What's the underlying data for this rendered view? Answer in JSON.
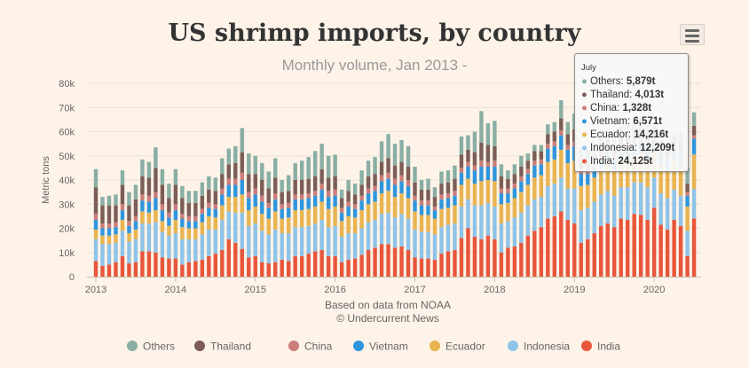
{
  "chart_data": {
    "type": "bar",
    "stacked": true,
    "title": "US shrimp imports, by country",
    "subtitle": "Monthly volume, Jan 2013 -",
    "ylabel": "Metric tons",
    "xlabel": "",
    "source_line1": "Based on data from NOAA",
    "source_line2": "© Undercurrent News",
    "ylim": [
      0,
      80000
    ],
    "y_ticks": [
      0,
      10000,
      20000,
      30000,
      40000,
      50000,
      60000,
      70000,
      80000
    ],
    "y_tick_labels": [
      "0",
      "10k",
      "20k",
      "30k",
      "40k",
      "50k",
      "60k",
      "70k",
      "80k"
    ],
    "x_ticks": [
      {
        "label": "2013",
        "month_index": 0
      },
      {
        "label": "2014",
        "month_index": 12
      },
      {
        "label": "2015",
        "month_index": 24
      },
      {
        "label": "2016",
        "month_index": 36
      },
      {
        "label": "2017",
        "month_index": 48
      },
      {
        "label": "2018",
        "month_index": 60
      },
      {
        "label": "2019",
        "month_index": 72
      },
      {
        "label": "2020",
        "month_index": 84
      }
    ],
    "month_count": 91,
    "stack_order": [
      "India",
      "Indonesia",
      "Ecuador",
      "Vietnam",
      "China",
      "Thailand",
      "Others"
    ],
    "totals": [
      44500,
      33000,
      33500,
      34000,
      44000,
      35000,
      38000,
      48500,
      47500,
      53500,
      44500,
      38500,
      44500,
      37500,
      35500,
      35500,
      39000,
      41500,
      41000,
      49000,
      53000,
      54000,
      61500,
      51000,
      50000,
      47000,
      43500,
      49000,
      40000,
      42000,
      47000,
      48000,
      49500,
      52000,
      55000,
      50000,
      50500,
      36000,
      40000,
      38500,
      44000,
      48000,
      49500,
      56000,
      59000,
      55000,
      56500,
      54000,
      45500,
      40000,
      40500,
      37000,
      43500,
      44000,
      46000,
      58000,
      58500,
      60000,
      68500,
      63500,
      64500,
      46500,
      44000,
      46500,
      50000,
      51000,
      54500,
      54500,
      63000,
      64000,
      73000,
      64000,
      67500,
      53500,
      52500,
      55000,
      58500,
      61000,
      57000,
      62000,
      63000,
      64500,
      66000,
      64000,
      62500,
      56000,
      54000,
      59000,
      60000,
      45000,
      68000
    ],
    "india": [
      6500,
      4500,
      5000,
      6000,
      8500,
      5500,
      6000,
      10500,
      10500,
      10000,
      8000,
      7500,
      7500,
      5000,
      6000,
      6500,
      7000,
      8500,
      9500,
      11000,
      15500,
      14000,
      11500,
      8000,
      8500,
      6000,
      5500,
      6000,
      7000,
      6500,
      8500,
      8500,
      9500,
      10500,
      11000,
      8500,
      8500,
      6000,
      7000,
      7500,
      9000,
      11000,
      12000,
      13500,
      13500,
      12000,
      12500,
      11000,
      8000,
      7500,
      7500,
      7000,
      9500,
      10500,
      11000,
      16000,
      20000,
      16500,
      15500,
      17000,
      15500,
      10000,
      12000,
      12500,
      14000,
      17000,
      19000,
      20500,
      24000,
      25000,
      27000,
      23500,
      22000,
      14000,
      15500,
      18000,
      21000,
      22000,
      20500,
      24000,
      23500,
      26000,
      25500,
      23500,
      28500,
      21500,
      19500,
      23500,
      21000,
      8500,
      24125
    ],
    "indonesia": [
      9000,
      9000,
      8500,
      8000,
      10500,
      9000,
      9500,
      11500,
      11500,
      12500,
      10500,
      9500,
      10500,
      10500,
      9500,
      9000,
      10500,
      11000,
      10000,
      12500,
      11500,
      12500,
      15000,
      13000,
      13500,
      13000,
      12000,
      13500,
      11000,
      11500,
      12000,
      12000,
      11500,
      11500,
      12500,
      12000,
      12500,
      10500,
      11000,
      10500,
      11000,
      11500,
      11500,
      12500,
      13000,
      12500,
      13500,
      13000,
      11500,
      11000,
      11000,
      10500,
      11000,
      11000,
      11000,
      13000,
      12000,
      13000,
      14000,
      13500,
      13500,
      12000,
      11000,
      12000,
      12500,
      12500,
      13000,
      12500,
      13500,
      13500,
      14000,
      13000,
      14500,
      13500,
      13000,
      13000,
      13000,
      13500,
      13000,
      13000,
      13500,
      13000,
      13500,
      13500,
      12500,
      13000,
      13000,
      12500,
      12500,
      10500,
      12209
    ],
    "ecuador": [
      4000,
      3500,
      3500,
      3500,
      4500,
      3500,
      4000,
      5000,
      4500,
      5000,
      4500,
      4000,
      5500,
      5000,
      4500,
      4500,
      5000,
      5500,
      5000,
      6000,
      6000,
      6500,
      7500,
      6500,
      7000,
      7000,
      6500,
      7500,
      6000,
      6500,
      7000,
      7000,
      7000,
      7000,
      7500,
      7500,
      8000,
      6500,
      7000,
      6500,
      7500,
      7500,
      7500,
      8500,
      9000,
      8500,
      8500,
      8500,
      7500,
      7000,
      7000,
      6500,
      7500,
      7000,
      7500,
      9000,
      8500,
      9000,
      10000,
      9500,
      10500,
      8000,
      7500,
      8000,
      8500,
      8500,
      9000,
      9000,
      10000,
      10000,
      11500,
      10500,
      11500,
      10000,
      9500,
      10000,
      10500,
      11000,
      10500,
      11000,
      11500,
      11000,
      12000,
      11500,
      11500,
      11500,
      11000,
      12000,
      12500,
      10000,
      14216
    ],
    "vietnam": [
      4000,
      3000,
      3000,
      3000,
      4000,
      3000,
      3500,
      4500,
      4500,
      5000,
      4500,
      3500,
      4000,
      3500,
      3000,
      3000,
      3500,
      3500,
      3500,
      4500,
      5000,
      5000,
      6000,
      5000,
      5000,
      5000,
      4500,
      5000,
      4000,
      4000,
      4500,
      4500,
      4500,
      4500,
      5000,
      5000,
      4500,
      3500,
      4000,
      3500,
      4000,
      4500,
      4500,
      5000,
      5000,
      5000,
      5000,
      5000,
      4500,
      4000,
      4000,
      3500,
      4000,
      4000,
      4000,
      5000,
      5000,
      5500,
      6000,
      5500,
      6000,
      4500,
      4000,
      4000,
      4500,
      4500,
      5000,
      4500,
      5500,
      5500,
      6000,
      5500,
      6000,
      5000,
      4500,
      4500,
      5000,
      5000,
      4500,
      5000,
      5000,
      5000,
      5000,
      5500,
      4500,
      5000,
      4500,
      5000,
      5000,
      4500,
      6571
    ],
    "china": [
      2500,
      2000,
      2000,
      2000,
      2500,
      2000,
      2000,
      2500,
      2500,
      2500,
      2500,
      2000,
      2500,
      2000,
      2000,
      2000,
      2000,
      2000,
      2000,
      2500,
      2500,
      2500,
      3000,
      2500,
      2500,
      2500,
      2000,
      2500,
      2000,
      2000,
      2000,
      2000,
      2000,
      2000,
      2500,
      2500,
      2500,
      2000,
      2000,
      2000,
      2000,
      2000,
      2000,
      2500,
      2500,
      2500,
      2500,
      2500,
      2000,
      2000,
      2000,
      1500,
      2000,
      2000,
      2000,
      2000,
      2000,
      2000,
      2500,
      2000,
      2500,
      2000,
      2000,
      2000,
      2000,
      2000,
      2000,
      2000,
      2000,
      2000,
      2000,
      2000,
      2000,
      2000,
      1500,
      1500,
      1500,
      1500,
      1500,
      1500,
      1500,
      1500,
      1500,
      1500,
      1500,
      1500,
      1500,
      1500,
      1500,
      1500,
      1328
    ],
    "thailand": [
      11000,
      7500,
      7500,
      7000,
      8000,
      6500,
      7000,
      7500,
      7500,
      10000,
      8000,
      6000,
      8000,
      6500,
      5500,
      5500,
      5500,
      5500,
      5500,
      6000,
      6000,
      6500,
      8500,
      7500,
      6000,
      6500,
      6000,
      6500,
      5000,
      5000,
      6000,
      6000,
      6000,
      6000,
      6000,
      5500,
      5500,
      4000,
      4500,
      4000,
      4500,
      5000,
      5000,
      5500,
      6000,
      5500,
      5500,
      5500,
      5500,
      4500,
      4500,
      4000,
      4500,
      4500,
      5000,
      5500,
      5000,
      5500,
      7500,
      7000,
      6000,
      5000,
      4000,
      4000,
      4000,
      3500,
      4000,
      3500,
      4000,
      4000,
      5000,
      4500,
      5000,
      4000,
      4000,
      3500,
      3500,
      3500,
      3500,
      3500,
      3500,
      3500,
      3500,
      3500,
      3500,
      3500,
      3500,
      3500,
      3500,
      3500,
      4013
    ],
    "legend": [
      "Others",
      "Thailand",
      "China",
      "Vietnam",
      "Ecuador",
      "Indonesia",
      "India"
    ],
    "legend_position": "bottom",
    "colors": {
      "India": "#e8563b",
      "Indonesia": "#8ec3e9",
      "Ecuador": "#e9b450",
      "Vietnam": "#2f96de",
      "China": "#cb7d7a",
      "Thailand": "#7c5d57",
      "Others": "#89aea4"
    },
    "tooltip": {
      "month_index": 90,
      "header": "July",
      "rows": [
        {
          "name": "Others",
          "value": "5,879t"
        },
        {
          "name": "Thailand",
          "value": "4,013t"
        },
        {
          "name": "China",
          "value": "1,328t"
        },
        {
          "name": "Vietnam",
          "value": "6,571t"
        },
        {
          "name": "Ecuador",
          "value": "14,216t"
        },
        {
          "name": "Indonesia",
          "value": "12,209t"
        },
        {
          "name": "India",
          "value": "24,125t"
        }
      ]
    }
  }
}
